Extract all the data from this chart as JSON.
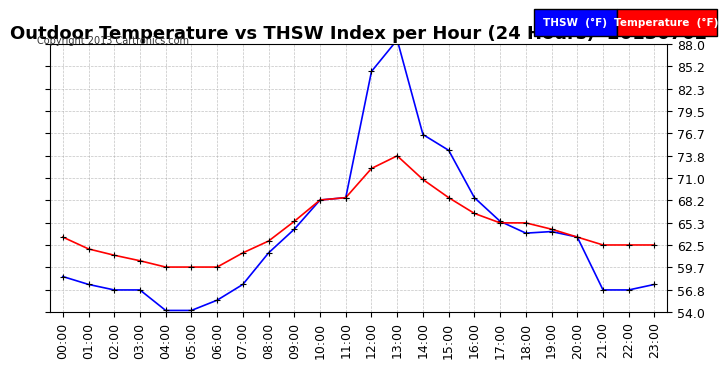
{
  "title": "Outdoor Temperature vs THSW Index per Hour (24 Hours)  20130702",
  "copyright": "Copyright 2013 Cartronics.com",
  "hours": [
    "00:00",
    "01:00",
    "02:00",
    "03:00",
    "04:00",
    "05:00",
    "06:00",
    "07:00",
    "08:00",
    "09:00",
    "10:00",
    "11:00",
    "12:00",
    "13:00",
    "14:00",
    "15:00",
    "16:00",
    "17:00",
    "18:00",
    "19:00",
    "20:00",
    "21:00",
    "22:00",
    "23:00"
  ],
  "thsw": [
    58.5,
    57.5,
    56.8,
    56.8,
    54.2,
    54.2,
    55.5,
    57.5,
    61.5,
    64.5,
    68.2,
    68.5,
    84.5,
    88.5,
    76.5,
    74.5,
    68.5,
    65.5,
    64.0,
    64.2,
    63.5,
    56.8,
    56.8,
    57.5
  ],
  "temperature": [
    63.5,
    62.0,
    61.2,
    60.5,
    59.7,
    59.7,
    59.7,
    61.5,
    63.0,
    65.5,
    68.2,
    68.5,
    72.2,
    73.8,
    70.8,
    68.5,
    66.5,
    65.3,
    65.3,
    64.5,
    63.5,
    62.5,
    62.5,
    62.5
  ],
  "ylim": [
    54.0,
    88.0
  ],
  "yticks": [
    54.0,
    56.8,
    59.7,
    62.5,
    65.3,
    68.2,
    71.0,
    73.8,
    76.7,
    79.5,
    82.3,
    85.2,
    88.0
  ],
  "thsw_color": "#0000ff",
  "temp_color": "#ff0000",
  "marker_color": "#000000",
  "background_color": "#ffffff",
  "grid_color": "#aaaaaa",
  "title_fontsize": 13,
  "tick_fontsize": 9,
  "legend_thsw_bg": "#0000ff",
  "legend_temp_bg": "#ff0000"
}
